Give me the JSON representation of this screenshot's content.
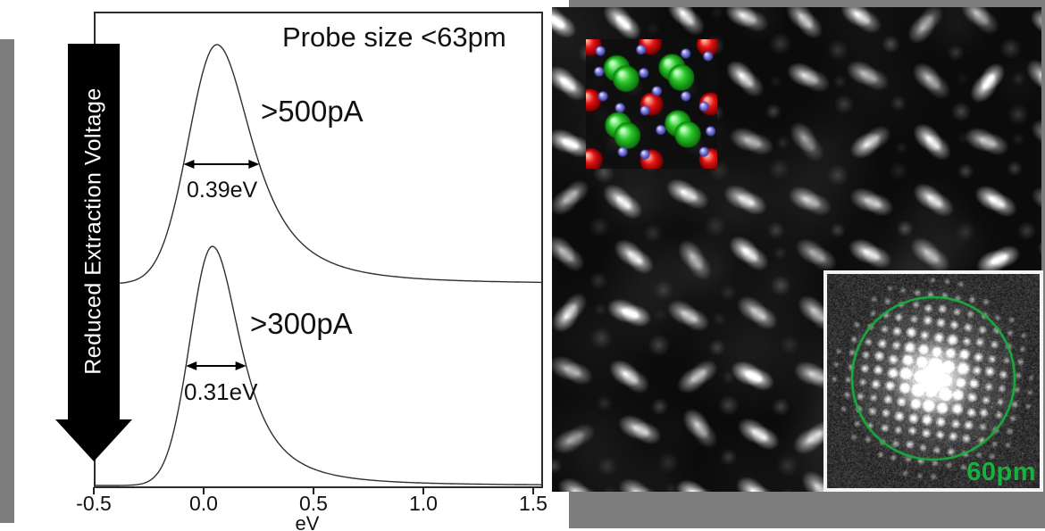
{
  "figure": {
    "spectra_panel": {
      "title": "Probe size <63pm",
      "side_arrow_label": "Reduced Extraction Voltage",
      "x_axis": {
        "label": "eV",
        "ticks": [
          "-0.5",
          "0.0",
          "0.5",
          "1.0",
          "1.5"
        ]
      },
      "peaks": [
        {
          "label": ">500pA",
          "fwhm_label": "0.39eV"
        },
        {
          "label": ">300pA",
          "fwhm_label": "0.31eV"
        }
      ],
      "curve_color": "#2f2f2f"
    },
    "stem_panel": {
      "fft_inset": {
        "resolution_label": "60pm",
        "accent_green": "#18b13e"
      },
      "model_inset": {
        "colors": {
          "red": "#e51313",
          "green": "#2bc82b",
          "blue": "#8585dd"
        },
        "red_atoms": [
          [
            0.03,
            0.04
          ],
          [
            0.49,
            0.03
          ],
          [
            0.93,
            0.04
          ],
          [
            0.03,
            0.47
          ],
          [
            0.5,
            0.5
          ],
          [
            0.95,
            0.5
          ],
          [
            0.04,
            0.93
          ],
          [
            0.5,
            0.94
          ],
          [
            0.95,
            0.93
          ]
        ],
        "green_atoms": [
          [
            0.235,
            0.225
          ],
          [
            0.305,
            0.305
          ],
          [
            0.655,
            0.215
          ],
          [
            0.725,
            0.295
          ],
          [
            0.245,
            0.665
          ],
          [
            0.315,
            0.745
          ],
          [
            0.7,
            0.65
          ],
          [
            0.775,
            0.735
          ]
        ],
        "blue_atoms": [
          [
            0.42,
            0.08
          ],
          [
            0.76,
            0.11
          ],
          [
            0.93,
            0.13
          ],
          [
            0.11,
            0.09
          ],
          [
            0.1,
            0.25
          ],
          [
            0.44,
            0.26
          ],
          [
            0.54,
            0.4
          ],
          [
            0.13,
            0.44
          ],
          [
            0.76,
            0.44
          ],
          [
            0.9,
            0.52
          ],
          [
            0.26,
            0.53
          ],
          [
            0.45,
            0.55
          ],
          [
            0.57,
            0.7
          ],
          [
            0.95,
            0.71
          ],
          [
            0.28,
            0.87
          ],
          [
            0.45,
            0.89
          ],
          [
            0.9,
            0.87
          ]
        ]
      }
    },
    "background": {
      "gray": "#7d7d7d"
    }
  },
  "chart_data": {
    "type": "line",
    "title": "Probe size <63pm",
    "xlabel": "eV",
    "ylabel": "",
    "xlim": [
      -0.5,
      1.5
    ],
    "x_ticks": [
      -0.5,
      0.0,
      0.5,
      1.0,
      1.5
    ],
    "grid": false,
    "legend": "inline labels next to each trace",
    "series": [
      {
        "name": ">500pA",
        "peak_center_eV": 0.06,
        "fwhm_eV": 0.39,
        "fwhm_annotation": "0.39eV",
        "trace": "upper, offset baseline"
      },
      {
        "name": ">300pA",
        "peak_center_eV": 0.04,
        "fwhm_eV": 0.31,
        "fwhm_annotation": "0.31eV",
        "trace": "lower, on x-axis baseline"
      }
    ],
    "annotations": [
      "Probe size <63pm (panel title)",
      "Reduced Extraction Voltage (downward black arrow along y direction)",
      "60pm (green circle on FFT inset of STEM image)"
    ]
  }
}
